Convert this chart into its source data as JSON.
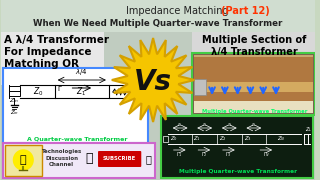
{
  "title_line1": "Impedance Matching ",
  "title_part12": "(Part 12)",
  "title_line2": "When We Need Multiple Quarter-wave Transformer",
  "left_text_line1": "A λ/4 Transformer",
  "left_text_line2": "For Impedance",
  "left_text_line3": "Matching OR",
  "right_text_line1": "Multiple Section of",
  "right_text_line2": "λ/4 Transformer",
  "vs_text": "Vs",
  "bg_color": "#c8d8c0",
  "title_bg": "#d0ddd0",
  "left_panel_bg": "#e8e8f0",
  "right_panel_bg": "#d0d8e0",
  "circuit_left_bg": "#1a3a5a",
  "circuit_right_bg": "#0d2818",
  "star_color": "#f5c500",
  "star_border": "#d4a000",
  "left_text_color": "#000000",
  "right_text_color": "#000000",
  "vs_color": "#111111",
  "title_color1": "#222222",
  "title_color2": "#ff3300",
  "circuit_label_left": "A Quarter-wave Transformer",
  "circuit_label_right": "Multiple Quarter-wave Transformer",
  "photo_label": "Multiple Quarter-wave Transformer",
  "logo_bg": "#f0e8f8",
  "logo_border": "#cc66cc",
  "bottom_left_bg": "#f0e8f8",
  "circuit_border_left": "#4488ff",
  "circuit_border_right": "#44cc44"
}
